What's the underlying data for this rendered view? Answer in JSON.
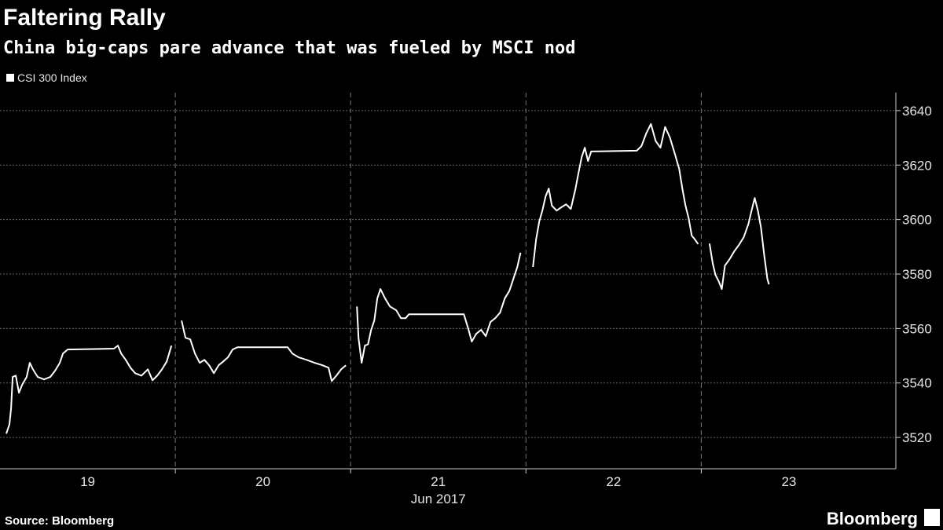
{
  "chart_data": {
    "type": "line",
    "title": "Faltering Rally",
    "subtitle": "China big-caps pare advance that was fueled by MSCI nod",
    "x_label": "Jun 2017",
    "source": "Source: Bloomberg",
    "brand": "Bloomberg",
    "grid": true,
    "legend": "top-left",
    "x": [
      18.536,
      18.554,
      18.563,
      18.572,
      18.59,
      18.608,
      18.626,
      18.652,
      18.67,
      18.688,
      18.715,
      18.751,
      18.787,
      18.814,
      18.841,
      18.859,
      18.886,
      19.15,
      19.173,
      19.191,
      19.217,
      19.244,
      19.271,
      19.307,
      19.343,
      19.37,
      19.397,
      19.424,
      19.451,
      19.478,
      null,
      19.536,
      19.558,
      19.585,
      19.612,
      19.639,
      19.666,
      19.693,
      19.72,
      19.747,
      19.774,
      19.8,
      19.827,
      19.854,
      20.141,
      20.168,
      20.204,
      20.249,
      20.294,
      20.339,
      20.374,
      20.392,
      20.419,
      20.446,
      20.473,
      null,
      20.536,
      20.545,
      20.563,
      20.581,
      20.599,
      20.617,
      20.635,
      20.652,
      20.67,
      20.697,
      20.724,
      20.76,
      20.787,
      20.814,
      20.832,
      21.146,
      21.173,
      21.191,
      21.217,
      21.244,
      21.271,
      21.298,
      21.325,
      21.352,
      21.379,
      21.406,
      21.433,
      21.451,
      21.469,
      null,
      21.54,
      21.558,
      21.576,
      21.594,
      21.612,
      21.63,
      21.648,
      21.675,
      21.702,
      21.729,
      21.756,
      21.783,
      21.8,
      21.818,
      21.836,
      21.854,
      21.872,
      22.132,
      22.159,
      22.186,
      22.213,
      22.24,
      22.267,
      22.294,
      22.321,
      22.348,
      22.374,
      22.392,
      22.41,
      22.428,
      22.446,
      22.464,
      22.482,
      null,
      22.547,
      22.565,
      22.581,
      22.599,
      22.617,
      22.635,
      22.661,
      22.688,
      22.715,
      22.742,
      22.769,
      22.787,
      22.805,
      22.823,
      22.841,
      22.859,
      22.877,
      22.886
    ],
    "series": [
      {
        "name": "CSI 300 Index",
        "color": "#ffffff",
        "values": [
          3521.4,
          3524.8,
          3530.6,
          3542.2,
          3542.7,
          3536.4,
          3539.3,
          3542.2,
          3547.4,
          3545,
          3542.2,
          3541.3,
          3542.2,
          3544.5,
          3547.4,
          3550.8,
          3552.3,
          3552.6,
          3553.7,
          3550.8,
          3548.5,
          3545.6,
          3543.6,
          3542.7,
          3545,
          3541,
          3542.7,
          3545,
          3547.9,
          3553.7,
          null,
          3562.9,
          3556.6,
          3556,
          3550.8,
          3547.4,
          3548.5,
          3546.5,
          3543.6,
          3546.5,
          3547.9,
          3549.4,
          3552.3,
          3553.1,
          3553.1,
          3550.8,
          3549.4,
          3548.5,
          3547.4,
          3546.5,
          3545.6,
          3540.7,
          3542.7,
          3545,
          3546.5,
          null,
          3568.1,
          3556.6,
          3547.4,
          3553.7,
          3554.2,
          3559.5,
          3562.9,
          3571,
          3574.5,
          3571,
          3568.1,
          3566.7,
          3563.8,
          3563.8,
          3565.2,
          3565.2,
          3559.5,
          3555.2,
          3558.1,
          3559.5,
          3557.2,
          3562.4,
          3563.8,
          3565.8,
          3571,
          3573.9,
          3579.1,
          3582.6,
          3587.8,
          null,
          3582.6,
          3592.7,
          3599.3,
          3603.3,
          3608.5,
          3611.4,
          3605.1,
          3603.3,
          3604.5,
          3605.6,
          3603.9,
          3611.4,
          3617.2,
          3622.9,
          3626.4,
          3621.5,
          3625,
          3625.3,
          3627,
          3631.6,
          3635.1,
          3628.8,
          3626.4,
          3634,
          3630.2,
          3624.4,
          3618.6,
          3611.4,
          3605.1,
          3600.5,
          3594.1,
          3592.7,
          3591,
          null,
          3591.2,
          3584,
          3579.7,
          3577.4,
          3574.5,
          3583.1,
          3585.4,
          3588.3,
          3590.7,
          3593.5,
          3598.4,
          3603.3,
          3607.9,
          3603.3,
          3597,
          3586.9,
          3578.2,
          3576.2
        ]
      }
    ],
    "xlim": [
      18.5,
      23.61
    ],
    "xticks": [
      19,
      20,
      21,
      22,
      23
    ],
    "ylim": [
      3508.5,
      3646.6
    ],
    "yticks": [
      3520,
      3540,
      3560,
      3580,
      3600,
      3620,
      3640
    ]
  }
}
